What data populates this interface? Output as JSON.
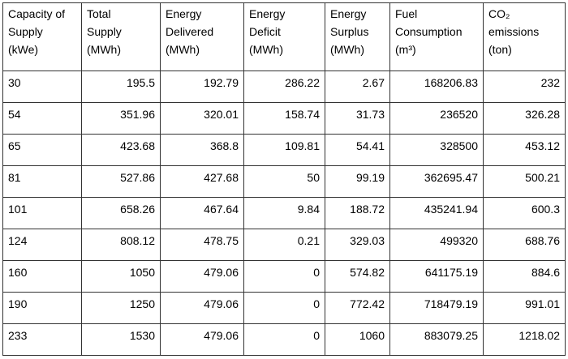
{
  "table": {
    "header": [
      [
        "Capacity of",
        "Supply",
        "(kWe)"
      ],
      [
        "Total",
        "Supply",
        "(MWh)"
      ],
      [
        "Energy",
        "Delivered",
        "(MWh)"
      ],
      [
        "Energy",
        "Deficit",
        "(MWh)"
      ],
      [
        "Energy",
        "Surplus",
        "(MWh)"
      ],
      [
        "Fuel",
        "Consumption",
        "(m³)"
      ],
      [
        "CO₂",
        "emissions",
        "(ton)"
      ]
    ],
    "rows": [
      [
        30,
        195.5,
        192.79,
        286.22,
        2.67,
        168206.83,
        232
      ],
      [
        54,
        351.96,
        320.01,
        158.74,
        31.73,
        236520,
        326.28
      ],
      [
        65,
        423.68,
        368.8,
        109.81,
        54.41,
        328500,
        453.12
      ],
      [
        81,
        527.86,
        427.68,
        50,
        99.19,
        362695.47,
        500.21
      ],
      [
        101,
        658.26,
        467.64,
        9.84,
        188.72,
        435241.94,
        600.3
      ],
      [
        124,
        808.12,
        478.75,
        0.21,
        329.03,
        499320,
        688.76
      ],
      [
        160,
        1050,
        479.06,
        0,
        574.82,
        641175.19,
        884.6
      ],
      [
        190,
        1250,
        479.06,
        0,
        772.42,
        718479.19,
        991.01
      ],
      [
        233,
        1530,
        479.06,
        0,
        1060,
        883079.25,
        1218.02
      ]
    ]
  }
}
